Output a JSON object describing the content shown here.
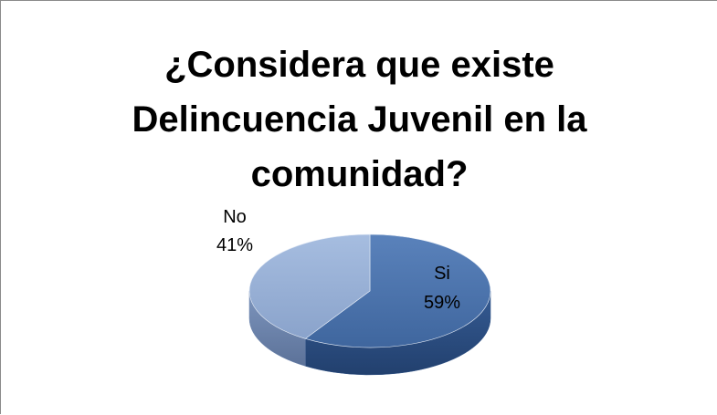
{
  "chart_data": {
    "type": "pie",
    "title_lines": [
      "¿Considera que existe",
      "Delincuencia Juvenil en la",
      "comunidad?"
    ],
    "slices": [
      {
        "name": "Si",
        "value": 59,
        "label": "59%",
        "color": "#4a72aa",
        "side_color": "#2f5286"
      },
      {
        "name": "No",
        "value": 41,
        "label": "41%",
        "color": "#95aed4",
        "side_color": "#6f87af"
      }
    ],
    "three_d": true,
    "legend": "none"
  }
}
